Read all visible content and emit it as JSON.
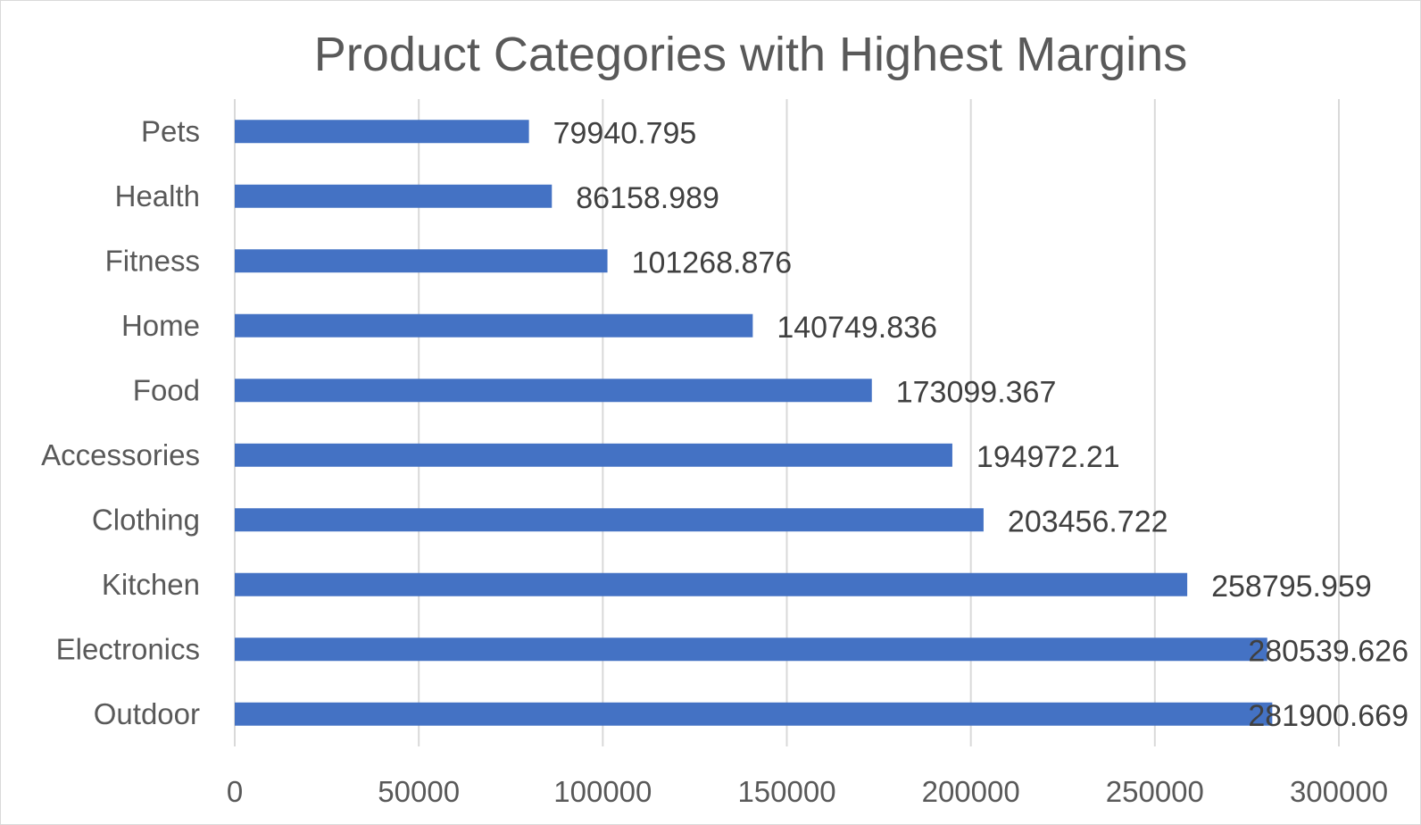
{
  "chart_data": {
    "type": "bar",
    "orientation": "horizontal",
    "title": "Product Categories with Highest Margins",
    "xlabel": "",
    "ylabel": "",
    "categories": [
      "Pets",
      "Health",
      "Fitness",
      "Home",
      "Food",
      "Accessories",
      "Clothing",
      "Kitchen",
      "Electronics",
      "Outdoor"
    ],
    "values": [
      79940.795,
      86158.989,
      101268.876,
      140749.836,
      173099.367,
      194972.21,
      203456.722,
      258795.959,
      280539.626,
      281900.669
    ],
    "data_labels": [
      "79940.795",
      "86158.989",
      "101268.876",
      "140749.836",
      "173099.367",
      "194972.21",
      "203456.722",
      "258795.959",
      "280539.626",
      "281900.669"
    ],
    "xlim": [
      0,
      300000
    ],
    "ticks": [
      "0",
      "50000",
      "100000",
      "150000",
      "200000",
      "250000",
      "300000"
    ],
    "tick_values": [
      0,
      50000,
      100000,
      150000,
      200000,
      250000,
      300000
    ],
    "grid": true,
    "legend": "none",
    "colors": {
      "bar": "#4472C4",
      "grid": "#d9d9d9",
      "text": "#595959",
      "data_label": "#404040"
    }
  }
}
